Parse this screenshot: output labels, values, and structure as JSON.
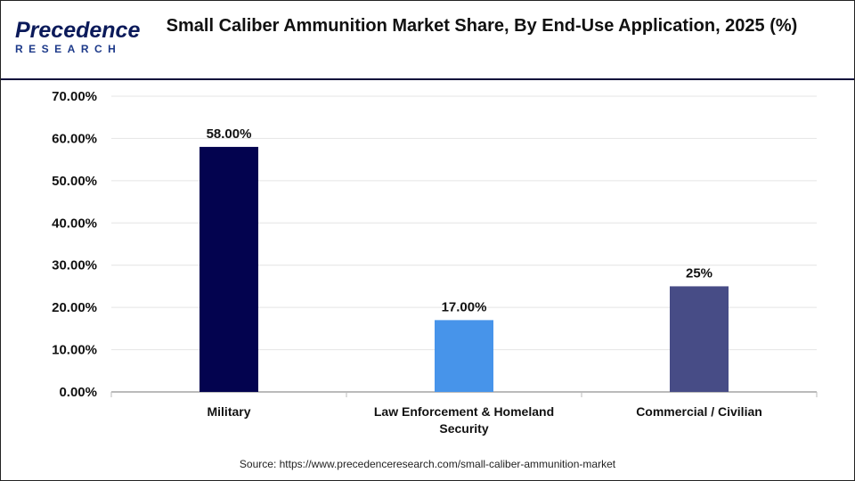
{
  "logo": {
    "line1": "Precedence",
    "line2": "RESEARCH"
  },
  "chart_data": {
    "type": "bar",
    "title": "Small Caliber Ammunition Market Share, By End-Use Application, 2025 (%)",
    "categories": [
      "Military",
      "Law Enforcement & Homeland Security",
      "Commercial / Civilian"
    ],
    "values": [
      58,
      17,
      25
    ],
    "data_labels": [
      "58.00%",
      "17.00%",
      "25%"
    ],
    "colors": [
      "#03034f",
      "#4794ea",
      "#474c86"
    ],
    "ylim": [
      0,
      70
    ],
    "yticks": [
      "0.00%",
      "10.00%",
      "20.00%",
      "30.00%",
      "40.00%",
      "50.00%",
      "60.00%",
      "70.00%"
    ],
    "grid": true,
    "xlabel": "",
    "ylabel": ""
  },
  "source": "Source: https://www.precedenceresearch.com/small-caliber-ammunition-market"
}
